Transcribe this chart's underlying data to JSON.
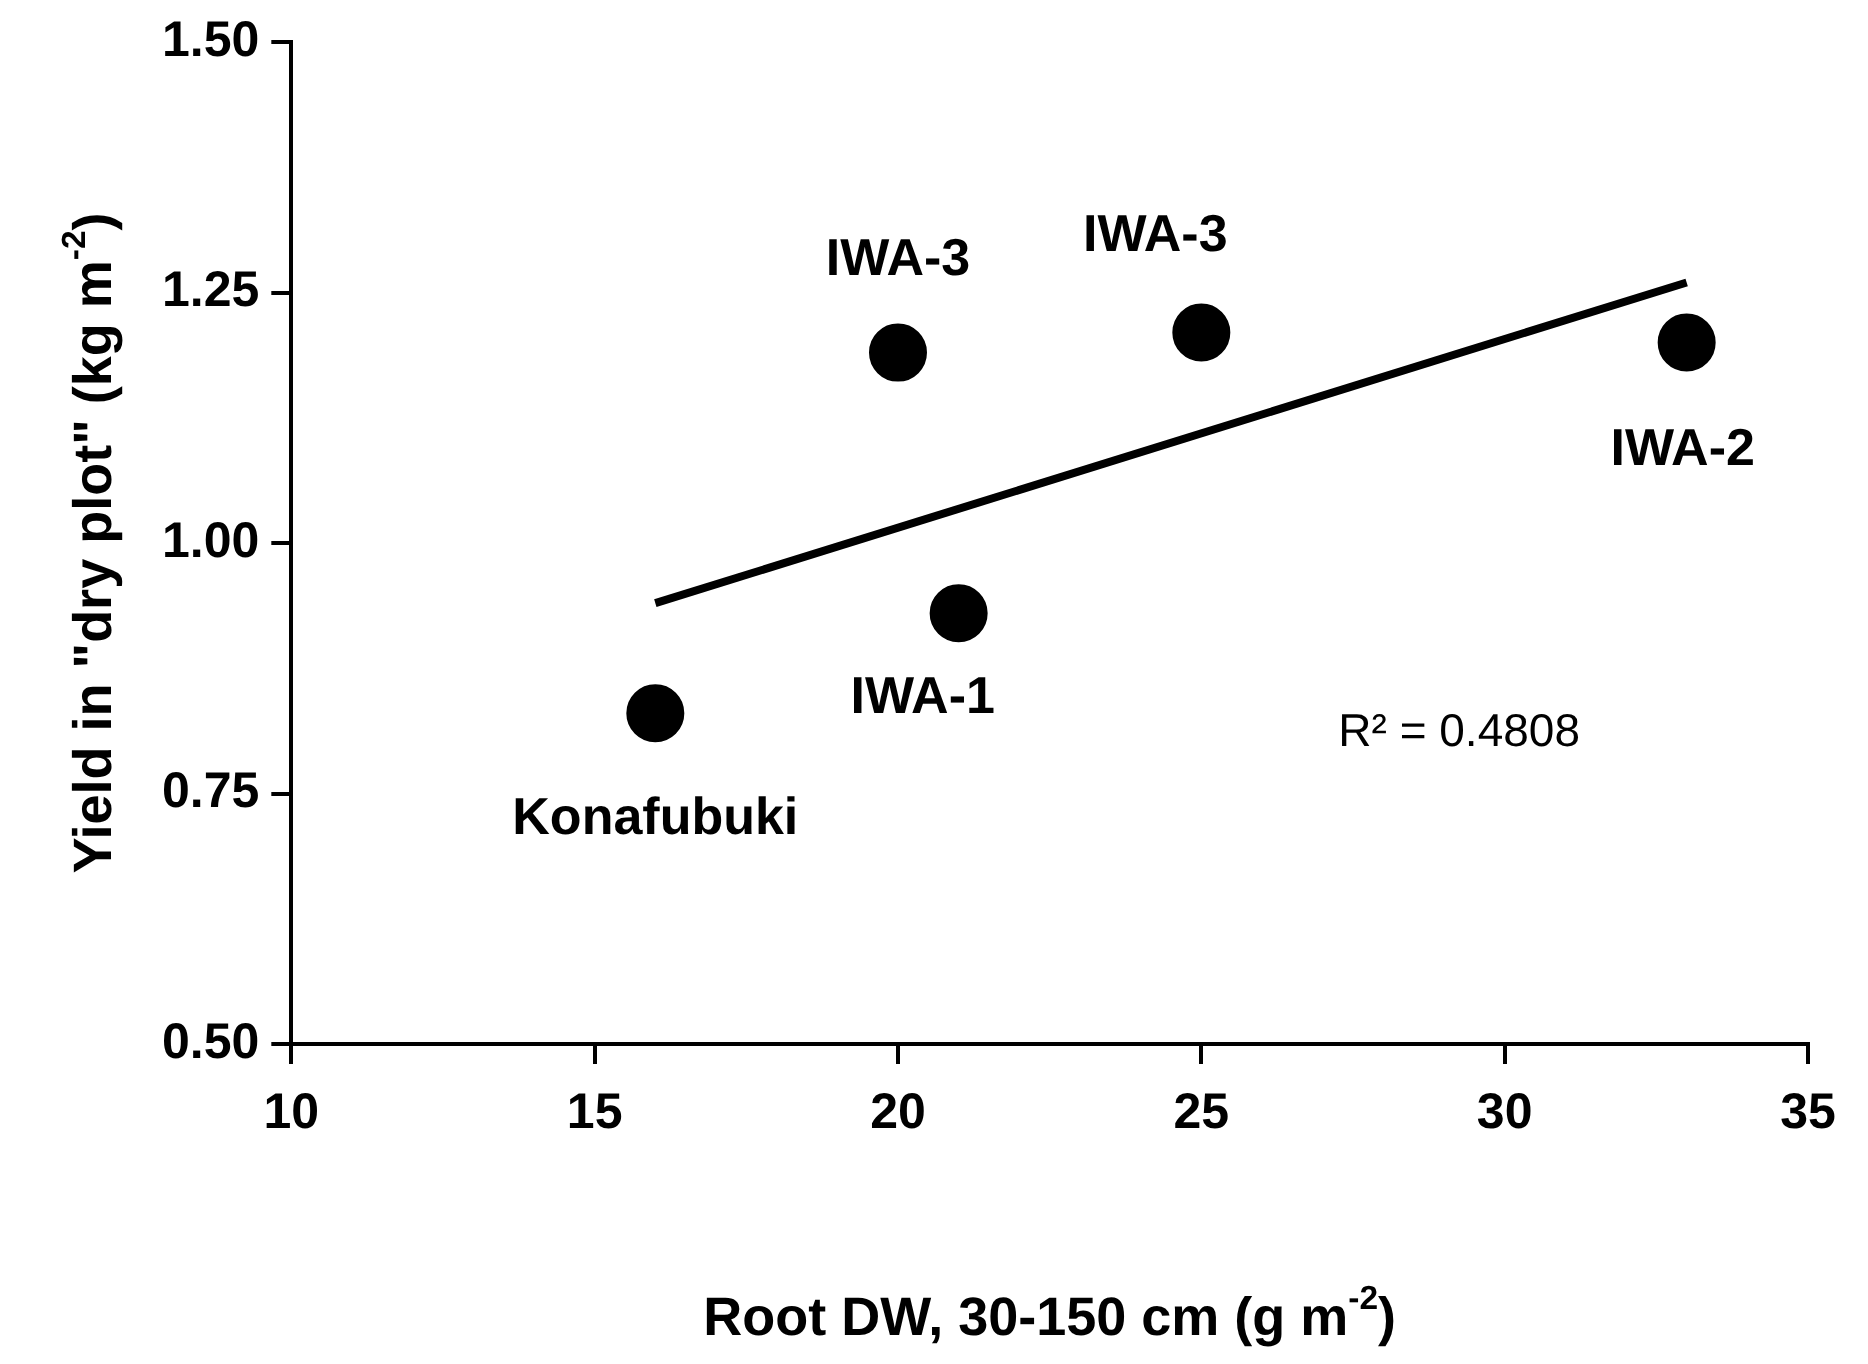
{
  "chart_data": {
    "type": "scatter",
    "xlabel": "Root DW, 30-150 cm (g m$^{-2}$)",
    "ylabel": "Yield in \"dry plot\" (kg m$^{-2}$)",
    "x": [
      16,
      20,
      21,
      25,
      33
    ],
    "series": [
      {
        "color": "#000000",
        "marker": "circle",
        "values": [
          0.83,
          1.19,
          0.93,
          1.21,
          1.2
        ]
      },
      {
        "type": "line",
        "color": "#000000",
        "marker": "none",
        "x": [
          16,
          33
        ],
        "values": [
          0.94,
          1.26
        ]
      }
    ],
    "xlim": [
      10,
      35
    ],
    "xticks": [
      10,
      15,
      20,
      25,
      30,
      35
    ],
    "ylim": [
      0.5,
      1.5
    ],
    "yticks": [
      {
        "value": 0.5,
        "label": "0.50"
      },
      {
        "value": 0.75,
        "label": "0.75"
      },
      {
        "value": 1,
        "label": "1.00"
      },
      {
        "value": 1.25,
        "label": "1.25"
      },
      {
        "value": 1.5,
        "label": "1.50"
      }
    ],
    "line_style": "solid",
    "grid": false,
    "legend": false,
    "annotations": [
      {
        "text": "Konafubuki",
        "x": 16,
        "y": 0.83
      },
      {
        "text": "IWA-3",
        "x": 20,
        "y": 1.19
      },
      {
        "text": "IWA-1",
        "x": 21,
        "y": 0.93
      },
      {
        "text": "IWA-3",
        "x": 25,
        "y": 1.21
      },
      {
        "text": "IWA-2",
        "x": 33,
        "y": 1.2
      },
      "R² = 0.4808"
    ]
  }
}
